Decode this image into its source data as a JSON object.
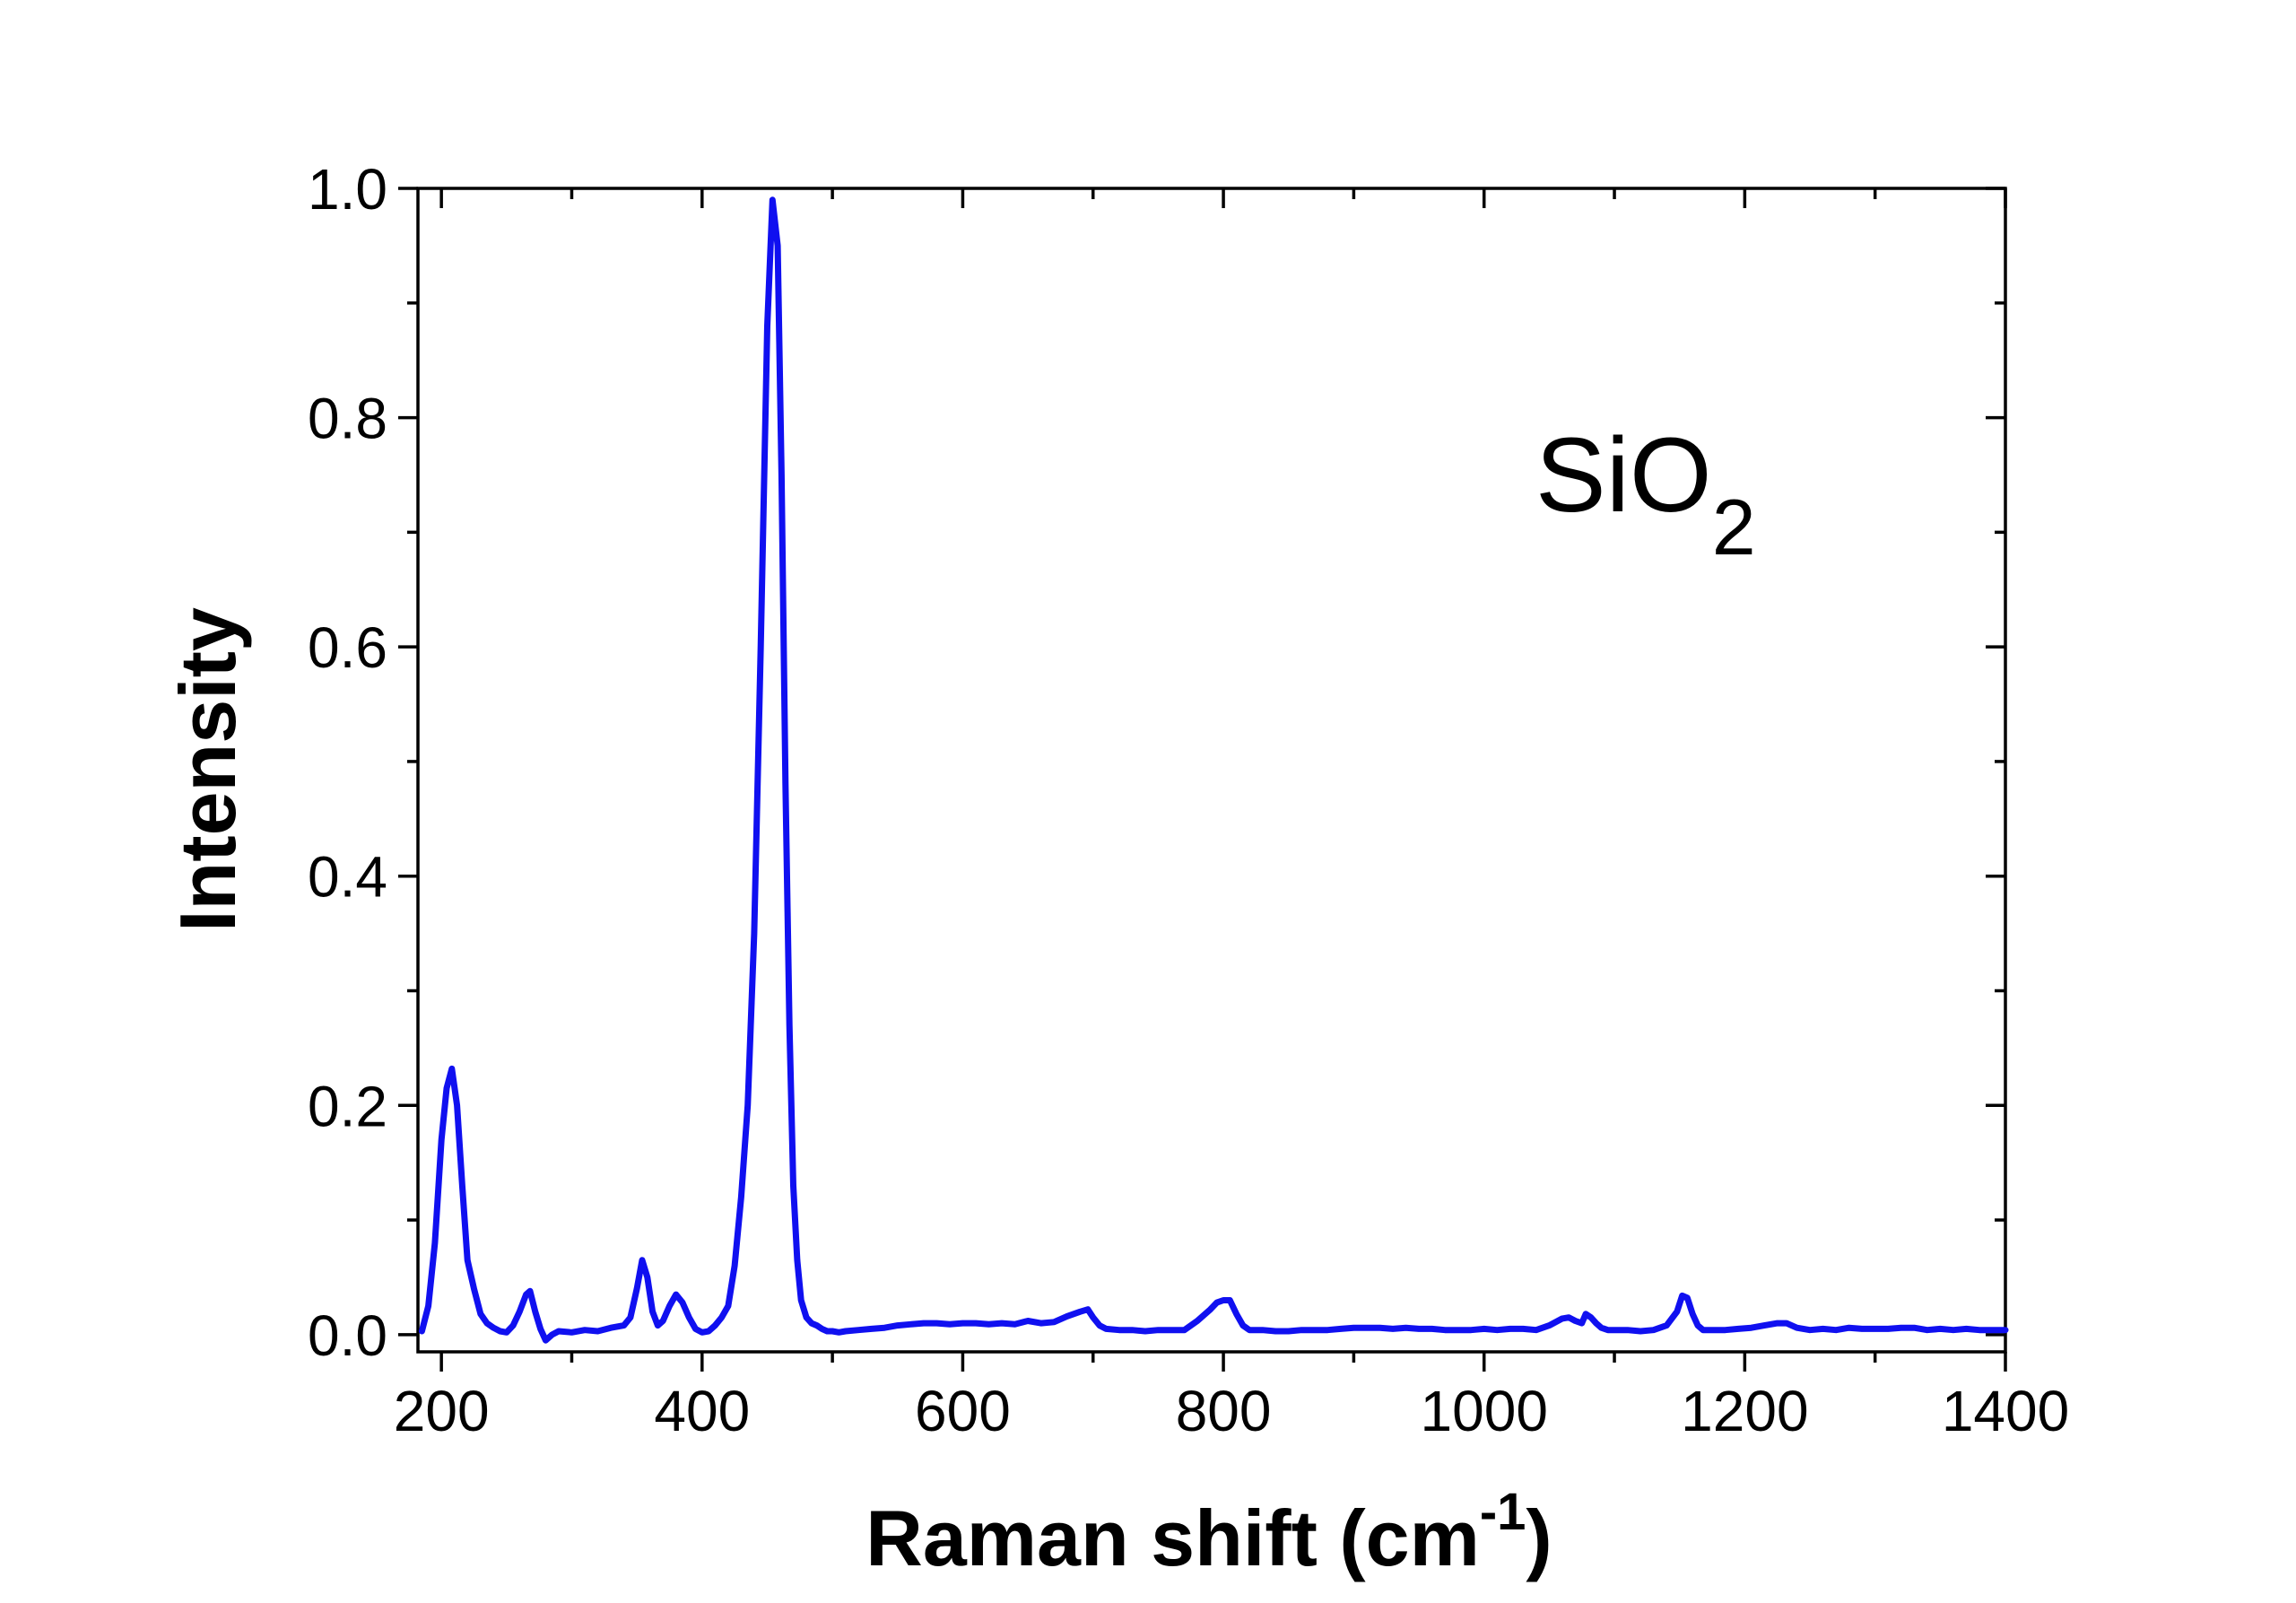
{
  "chart_data": {
    "type": "line",
    "title": "",
    "xlabel": "Raman shift (cm",
    "xlabel_sup": "-1",
    "xlabel_suffix": ")",
    "ylabel": "Intensity",
    "xlim": [
      182,
      1400
    ],
    "ylim": [
      -0.015,
      1.0
    ],
    "x_major_ticks": [
      200,
      400,
      600,
      800,
      1000,
      1200,
      1400
    ],
    "x_minor_ticks": [
      300,
      500,
      700,
      900,
      1100,
      1300
    ],
    "y_major_ticks": [
      0.0,
      0.2,
      0.4,
      0.6,
      0.8,
      1.0
    ],
    "y_minor_ticks": [
      0.1,
      0.3,
      0.5,
      0.7,
      0.9
    ],
    "x_tick_labels": [
      "200",
      "400",
      "600",
      "800",
      "1000",
      "1200",
      "1400"
    ],
    "y_tick_labels": [
      "0.0",
      "0.2",
      "0.4",
      "0.6",
      "0.8",
      "1.0"
    ],
    "grid": false,
    "annotation": {
      "text": "SiO",
      "subscript": "2"
    },
    "series": [
      {
        "name": "SiO2",
        "color": "#1010f0",
        "x": [
          185,
          190,
          195,
          200,
          204,
          208,
          212,
          216,
          220,
          225,
          230,
          235,
          240,
          245,
          250,
          255,
          260,
          265,
          268,
          272,
          276,
          280,
          285,
          290,
          300,
          310,
          320,
          330,
          340,
          345,
          350,
          354,
          358,
          362,
          366,
          370,
          375,
          380,
          385,
          390,
          395,
          400,
          405,
          410,
          415,
          420,
          425,
          430,
          435,
          440,
          445,
          450,
          454,
          458,
          461,
          464,
          467,
          470,
          473,
          476,
          480,
          484,
          488,
          492,
          496,
          500,
          505,
          510,
          520,
          530,
          540,
          550,
          560,
          570,
          580,
          590,
          600,
          610,
          620,
          630,
          640,
          650,
          660,
          670,
          680,
          690,
          696,
          700,
          705,
          710,
          720,
          730,
          740,
          750,
          760,
          770,
          780,
          790,
          795,
          800,
          805,
          810,
          815,
          820,
          830,
          840,
          850,
          860,
          870,
          880,
          890,
          900,
          910,
          920,
          930,
          940,
          950,
          960,
          970,
          980,
          990,
          1000,
          1010,
          1020,
          1030,
          1040,
          1050,
          1060,
          1065,
          1070,
          1075,
          1078,
          1082,
          1086,
          1090,
          1095,
          1100,
          1110,
          1120,
          1130,
          1140,
          1148,
          1152,
          1156,
          1160,
          1164,
          1168,
          1175,
          1185,
          1195,
          1205,
          1215,
          1225,
          1232,
          1240,
          1250,
          1260,
          1270,
          1280,
          1290,
          1300,
          1310,
          1320,
          1330,
          1340,
          1350,
          1360,
          1370,
          1380,
          1390,
          1400
        ],
        "y": [
          0.003,
          0.025,
          0.08,
          0.17,
          0.215,
          0.232,
          0.2,
          0.13,
          0.065,
          0.04,
          0.018,
          0.01,
          0.006,
          0.003,
          0.002,
          0.008,
          0.02,
          0.035,
          0.038,
          0.02,
          0.005,
          -0.005,
          0.0,
          0.003,
          0.002,
          0.004,
          0.003,
          0.006,
          0.008,
          0.015,
          0.04,
          0.065,
          0.05,
          0.02,
          0.008,
          0.012,
          0.025,
          0.035,
          0.028,
          0.015,
          0.005,
          0.002,
          0.003,
          0.008,
          0.015,
          0.025,
          0.06,
          0.12,
          0.2,
          0.35,
          0.6,
          0.88,
          0.99,
          0.95,
          0.75,
          0.48,
          0.27,
          0.13,
          0.065,
          0.03,
          0.015,
          0.01,
          0.008,
          0.005,
          0.003,
          0.003,
          0.002,
          0.003,
          0.004,
          0.005,
          0.006,
          0.008,
          0.009,
          0.01,
          0.01,
          0.009,
          0.01,
          0.01,
          0.009,
          0.01,
          0.009,
          0.012,
          0.01,
          0.011,
          0.016,
          0.02,
          0.022,
          0.015,
          0.008,
          0.005,
          0.004,
          0.004,
          0.003,
          0.004,
          0.004,
          0.004,
          0.012,
          0.022,
          0.028,
          0.03,
          0.03,
          0.018,
          0.008,
          0.004,
          0.004,
          0.003,
          0.003,
          0.004,
          0.004,
          0.004,
          0.005,
          0.006,
          0.006,
          0.006,
          0.005,
          0.006,
          0.005,
          0.005,
          0.004,
          0.004,
          0.004,
          0.005,
          0.004,
          0.005,
          0.005,
          0.004,
          0.008,
          0.014,
          0.015,
          0.012,
          0.01,
          0.018,
          0.015,
          0.01,
          0.006,
          0.004,
          0.004,
          0.004,
          0.003,
          0.004,
          0.008,
          0.02,
          0.034,
          0.032,
          0.018,
          0.008,
          0.004,
          0.004,
          0.004,
          0.005,
          0.006,
          0.008,
          0.01,
          0.01,
          0.006,
          0.004,
          0.005,
          0.004,
          0.006,
          0.005,
          0.005,
          0.005,
          0.006,
          0.006,
          0.004,
          0.005,
          0.004,
          0.005,
          0.004,
          0.004,
          0.004
        ]
      }
    ]
  }
}
